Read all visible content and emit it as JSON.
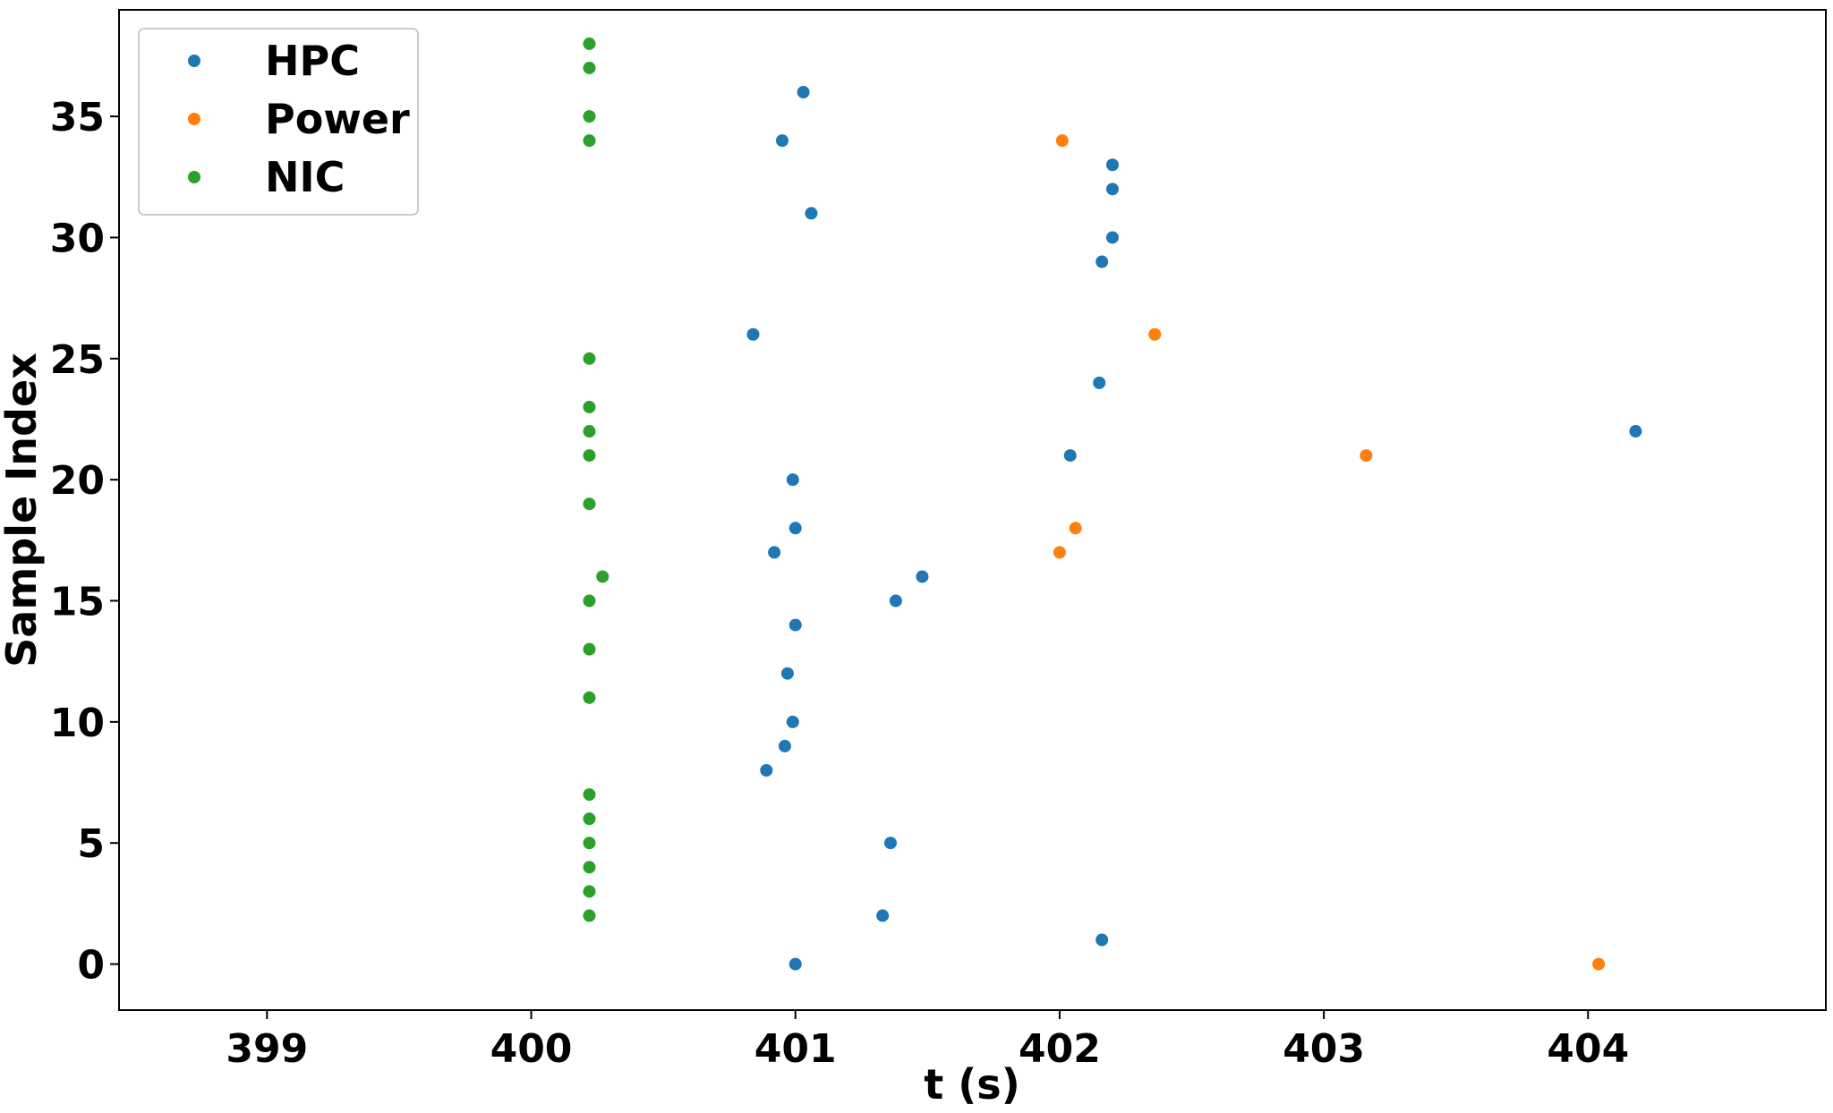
{
  "chart_data": {
    "type": "scatter",
    "title": "",
    "xlabel": "t (s)",
    "ylabel": "Sample Index",
    "xlim": [
      398.44,
      404.9
    ],
    "ylim": [
      -1.9,
      39.4
    ],
    "xticks": [
      399,
      400,
      401,
      402,
      403,
      404
    ],
    "yticks": [
      0,
      5,
      10,
      15,
      20,
      25,
      30,
      35
    ],
    "grid": false,
    "legend_position": "top-left",
    "series": [
      {
        "name": "HPC",
        "color": "#1f77b4",
        "points": [
          {
            "x": 401.0,
            "y": 0
          },
          {
            "x": 402.16,
            "y": 1
          },
          {
            "x": 401.33,
            "y": 2
          },
          {
            "x": 401.36,
            "y": 5
          },
          {
            "x": 400.89,
            "y": 8
          },
          {
            "x": 400.96,
            "y": 9
          },
          {
            "x": 400.99,
            "y": 10
          },
          {
            "x": 400.97,
            "y": 12
          },
          {
            "x": 401.0,
            "y": 14
          },
          {
            "x": 401.38,
            "y": 15
          },
          {
            "x": 401.48,
            "y": 16
          },
          {
            "x": 400.92,
            "y": 17
          },
          {
            "x": 401.0,
            "y": 18
          },
          {
            "x": 400.99,
            "y": 20
          },
          {
            "x": 402.04,
            "y": 21
          },
          {
            "x": 404.18,
            "y": 22
          },
          {
            "x": 402.15,
            "y": 24
          },
          {
            "x": 400.84,
            "y": 26
          },
          {
            "x": 402.16,
            "y": 29
          },
          {
            "x": 402.2,
            "y": 30
          },
          {
            "x": 401.06,
            "y": 31
          },
          {
            "x": 402.2,
            "y": 32
          },
          {
            "x": 402.2,
            "y": 33
          },
          {
            "x": 400.95,
            "y": 34
          },
          {
            "x": 401.03,
            "y": 36
          }
        ]
      },
      {
        "name": "Power",
        "color": "#ff7f0e",
        "points": [
          {
            "x": 404.04,
            "y": 0
          },
          {
            "x": 402.0,
            "y": 17
          },
          {
            "x": 402.06,
            "y": 18
          },
          {
            "x": 403.16,
            "y": 21
          },
          {
            "x": 402.36,
            "y": 26
          },
          {
            "x": 402.01,
            "y": 34
          }
        ]
      },
      {
        "name": "NIC",
        "color": "#2ca02c",
        "points": [
          {
            "x": 400.22,
            "y": 2
          },
          {
            "x": 400.22,
            "y": 3
          },
          {
            "x": 400.22,
            "y": 4
          },
          {
            "x": 400.22,
            "y": 5
          },
          {
            "x": 400.22,
            "y": 6
          },
          {
            "x": 400.22,
            "y": 7
          },
          {
            "x": 400.22,
            "y": 11
          },
          {
            "x": 400.22,
            "y": 13
          },
          {
            "x": 400.22,
            "y": 15
          },
          {
            "x": 400.27,
            "y": 16
          },
          {
            "x": 400.22,
            "y": 19
          },
          {
            "x": 400.22,
            "y": 21
          },
          {
            "x": 400.22,
            "y": 22
          },
          {
            "x": 400.22,
            "y": 23
          },
          {
            "x": 400.22,
            "y": 25
          },
          {
            "x": 400.22,
            "y": 34
          },
          {
            "x": 400.22,
            "y": 35
          },
          {
            "x": 400.22,
            "y": 37
          },
          {
            "x": 400.22,
            "y": 38
          }
        ]
      }
    ]
  }
}
